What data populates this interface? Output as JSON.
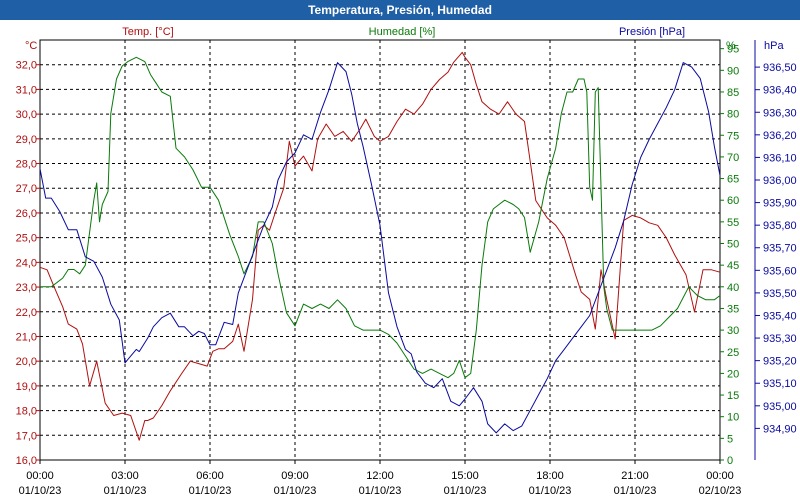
{
  "window": {
    "title": "Temperatura, Presión, Humedad"
  },
  "colors": {
    "temp": "#b01010",
    "hum": "#0a7a0a",
    "pres": "#0a0aa0",
    "titlebar": "#1f5fa6",
    "grid": "#000000"
  },
  "chart_data": {
    "type": "line",
    "title": "Temperatura, Presión, Humedad",
    "grid": true,
    "x_ticks": [
      {
        "time": "00:00",
        "date": "01/10/23"
      },
      {
        "time": "03:00",
        "date": "01/10/23"
      },
      {
        "time": "06:00",
        "date": "01/10/23"
      },
      {
        "time": "09:00",
        "date": "01/10/23"
      },
      {
        "time": "12:00",
        "date": "01/10/23"
      },
      {
        "time": "15:00",
        "date": "01/10/23"
      },
      {
        "time": "18:00",
        "date": "01/10/23"
      },
      {
        "time": "21:00",
        "date": "01/10/23"
      },
      {
        "time": "00:00",
        "date": "02/10/23"
      }
    ],
    "axes": {
      "temp": {
        "label": "Temp. [°C]",
        "unit": "°C",
        "ylim": [
          16.0,
          33.0
        ],
        "ticks": [
          "16,0",
          "17,0",
          "18,0",
          "19,0",
          "20,0",
          "21,0",
          "22,0",
          "23,0",
          "24,0",
          "25,0",
          "26,0",
          "27,0",
          "28,0",
          "29,0",
          "30,0",
          "31,0",
          "32,0"
        ]
      },
      "hum": {
        "label": "Humedad [%]",
        "unit": "%",
        "ylim": [
          0,
          97
        ],
        "ticks": [
          "0",
          "5",
          "10",
          "15",
          "20",
          "25",
          "30",
          "35",
          "40",
          "45",
          "50",
          "55",
          "60",
          "65",
          "70",
          "75",
          "80",
          "85",
          "90",
          "95"
        ]
      },
      "pres": {
        "label": "Presión [hPa]",
        "unit": "hPa",
        "ylim": [
          934.76,
          936.62
        ],
        "ticks": [
          "934,90",
          "935,00",
          "935,10",
          "935,20",
          "935,30",
          "935,40",
          "935,50",
          "935,60",
          "935,70",
          "935,80",
          "935,90",
          "936,00",
          "936,10",
          "936,20",
          "936,30",
          "936,40",
          "936,50"
        ]
      }
    },
    "series": [
      {
        "name": "Temp. [°C]",
        "axis": "temp",
        "x": [
          0,
          0.25,
          0.5,
          0.8,
          1.0,
          1.3,
          1.5,
          1.75,
          2.0,
          2.3,
          2.6,
          2.9,
          3.2,
          3.5,
          3.7,
          3.8,
          4.0,
          4.3,
          4.6,
          5.0,
          5.3,
          5.6,
          5.9,
          6.1,
          6.3,
          6.5,
          6.8,
          7.0,
          7.2,
          7.5,
          7.7,
          7.9,
          8.1,
          8.3,
          8.6,
          8.8,
          9.0,
          9.3,
          9.6,
          9.8,
          10.1,
          10.4,
          10.7,
          11.0,
          11.3,
          11.5,
          11.8,
          12.0,
          12.3,
          12.6,
          12.9,
          13.2,
          13.5,
          13.8,
          14.1,
          14.4,
          14.6,
          14.9,
          15.0,
          15.2,
          15.4,
          15.6,
          15.9,
          16.2,
          16.5,
          16.8,
          17.1,
          17.5,
          17.9,
          18.2,
          18.5,
          18.9,
          19.1,
          19.4,
          19.6,
          19.8,
          20.0,
          20.3,
          20.6,
          20.9,
          21.2,
          21.5,
          21.8,
          22.1,
          22.4,
          22.8,
          23.1,
          23.4,
          23.7,
          24.0
        ],
        "values": [
          23.8,
          23.7,
          23.0,
          22.2,
          21.5,
          21.3,
          20.7,
          19.0,
          20.0,
          18.3,
          17.8,
          17.9,
          17.8,
          16.8,
          17.6,
          17.6,
          17.7,
          18.2,
          18.8,
          19.5,
          20.0,
          19.9,
          19.8,
          20.4,
          20.5,
          20.5,
          20.8,
          21.5,
          20.4,
          22.5,
          25.3,
          25.5,
          25.3,
          26.0,
          27.0,
          28.9,
          27.9,
          28.3,
          27.7,
          29.0,
          29.6,
          29.1,
          29.3,
          28.9,
          29.4,
          29.8,
          29.1,
          28.9,
          29.1,
          29.7,
          30.2,
          30.0,
          30.4,
          31.0,
          31.4,
          31.7,
          32.1,
          32.5,
          32.3,
          32.0,
          31.2,
          30.5,
          30.2,
          30.0,
          30.5,
          30.0,
          29.7,
          26.5,
          25.8,
          25.5,
          25.0,
          23.5,
          22.8,
          22.5,
          21.3,
          23.7,
          22.5,
          20.9,
          25.7,
          25.9,
          25.8,
          25.6,
          25.5,
          25.0,
          24.3,
          23.5,
          22.0,
          23.7,
          23.7,
          23.6
        ]
      },
      {
        "name": "Humedad [%]",
        "axis": "hum",
        "x": [
          0,
          0.4,
          0.8,
          1.0,
          1.2,
          1.4,
          1.6,
          1.9,
          2.0,
          2.1,
          2.2,
          2.4,
          2.5,
          2.7,
          2.9,
          3.1,
          3.4,
          3.7,
          3.9,
          4.1,
          4.3,
          4.6,
          4.8,
          5.1,
          5.4,
          5.7,
          6.0,
          6.3,
          6.7,
          7.0,
          7.2,
          7.5,
          7.7,
          7.9,
          8.2,
          8.4,
          8.7,
          9.0,
          9.3,
          9.6,
          9.9,
          10.2,
          10.5,
          10.8,
          11.1,
          11.4,
          11.7,
          12.0,
          12.3,
          12.6,
          12.9,
          13.2,
          13.5,
          13.8,
          14.1,
          14.4,
          14.6,
          14.8,
          15.0,
          15.2,
          15.4,
          15.6,
          15.8,
          16.0,
          16.2,
          16.4,
          16.7,
          16.9,
          17.1,
          17.3,
          17.6,
          17.9,
          18.2,
          18.4,
          18.6,
          18.8,
          19.0,
          19.2,
          19.3,
          19.4,
          19.5,
          19.6,
          19.7,
          19.9,
          20.0,
          20.2,
          20.4,
          20.7,
          21.0,
          21.3,
          21.6,
          21.9,
          22.2,
          22.5,
          22.9,
          23.2,
          23.5,
          23.8,
          24.0
        ],
        "values": [
          40,
          40,
          42,
          44,
          44,
          43,
          45,
          60,
          64,
          55,
          59,
          62,
          80,
          88,
          91,
          92,
          93,
          92,
          89,
          87,
          85,
          84,
          72,
          70,
          67,
          63,
          63,
          60,
          52,
          47,
          43,
          47,
          55,
          55,
          50,
          43,
          34,
          31,
          36,
          35,
          36,
          35,
          37,
          35,
          31,
          30,
          30,
          30,
          29,
          27,
          24,
          21,
          20,
          21,
          20,
          19,
          20,
          23,
          19,
          20,
          30,
          45,
          55,
          58,
          59,
          60,
          59,
          58,
          56,
          48,
          55,
          65,
          72,
          80,
          85,
          85,
          88,
          88,
          85,
          63,
          60,
          85,
          86,
          40,
          35,
          30,
          30,
          30,
          30,
          30,
          30,
          31,
          33,
          35,
          40,
          38,
          37,
          37,
          38
        ]
      },
      {
        "name": "Presión [hPa]",
        "axis": "pres",
        "x": [
          0,
          0.2,
          0.4,
          0.7,
          1.0,
          1.3,
          1.6,
          1.9,
          2.2,
          2.5,
          2.8,
          3.0,
          3.2,
          3.4,
          3.5,
          3.8,
          4.0,
          4.3,
          4.6,
          4.9,
          5.1,
          5.4,
          5.6,
          5.8,
          6.0,
          6.2,
          6.5,
          6.8,
          7.0,
          7.3,
          7.6,
          7.9,
          8.2,
          8.4,
          8.7,
          9.0,
          9.3,
          9.6,
          9.9,
          10.2,
          10.5,
          10.8,
          11.0,
          11.2,
          11.4,
          11.7,
          12.0,
          12.3,
          12.6,
          12.9,
          13.1,
          13.3,
          13.6,
          13.9,
          14.2,
          14.5,
          14.8,
          15.0,
          15.3,
          15.6,
          15.8,
          16.1,
          16.4,
          16.7,
          17.0,
          17.3,
          17.6,
          17.9,
          18.2,
          18.5,
          18.8,
          19.1,
          19.4,
          19.7,
          20.0,
          20.3,
          20.6,
          20.9,
          21.2,
          21.5,
          21.8,
          22.1,
          22.4,
          22.7,
          23.0,
          23.3,
          23.6,
          23.8,
          24.0
        ],
        "values": [
          936.05,
          935.92,
          935.92,
          935.86,
          935.78,
          935.78,
          935.66,
          935.64,
          935.57,
          935.45,
          935.38,
          935.19,
          935.22,
          935.25,
          935.24,
          935.3,
          935.35,
          935.39,
          935.41,
          935.35,
          935.35,
          935.31,
          935.33,
          935.32,
          935.27,
          935.27,
          935.37,
          935.36,
          935.5,
          935.6,
          935.7,
          935.8,
          935.88,
          936.0,
          936.08,
          936.12,
          936.2,
          936.18,
          936.3,
          936.4,
          936.52,
          936.48,
          936.38,
          936.25,
          936.15,
          935.98,
          935.8,
          935.5,
          935.35,
          935.25,
          935.23,
          935.15,
          935.1,
          935.08,
          935.12,
          935.02,
          935.0,
          935.03,
          935.08,
          935.02,
          934.92,
          934.88,
          934.92,
          934.89,
          934.91,
          934.98,
          935.05,
          935.12,
          935.2,
          935.25,
          935.3,
          935.35,
          935.4,
          935.5,
          935.6,
          935.7,
          935.82,
          935.98,
          936.1,
          936.18,
          936.25,
          936.32,
          936.4,
          936.52,
          936.5,
          936.45,
          936.3,
          936.15,
          936.02
        ]
      }
    ]
  }
}
